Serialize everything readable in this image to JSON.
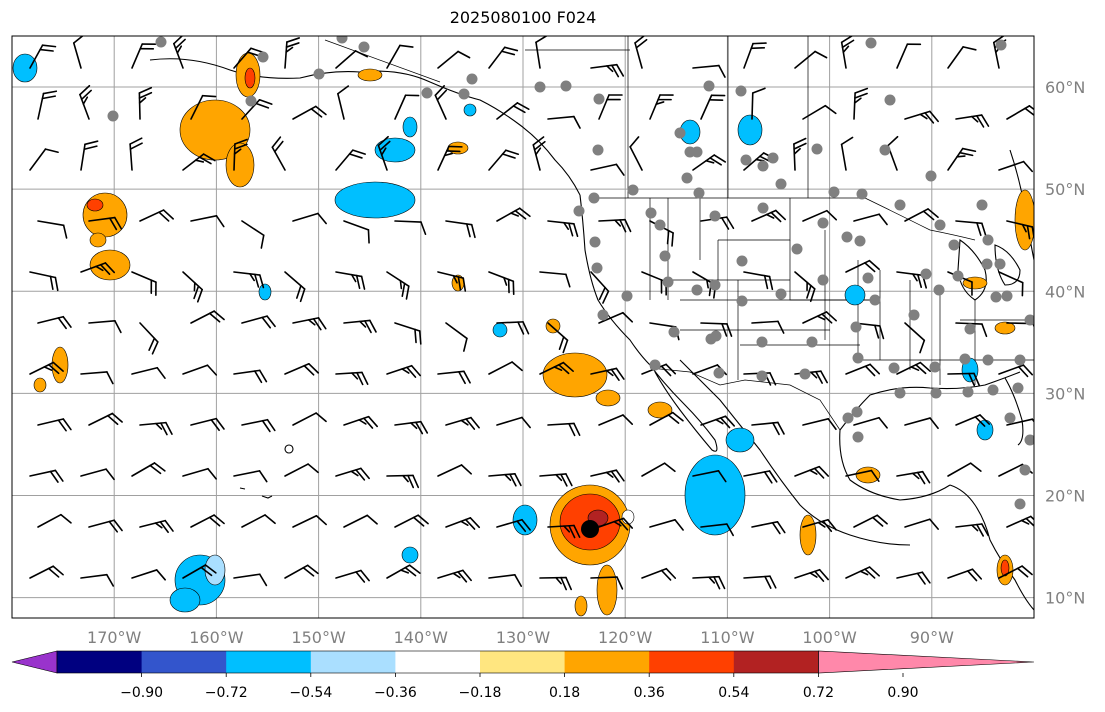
{
  "title": "2025080100 F024",
  "map": {
    "projection": "PlateCarree",
    "lon_range": [
      -180,
      -80
    ],
    "lat_range": [
      8,
      65
    ],
    "gridline_color": "#a0a0a0",
    "land_border_color": "#000000"
  },
  "axes": {
    "lon_ticks": [
      "170°W",
      "160°W",
      "150°W",
      "140°W",
      "130°W",
      "120°W",
      "110°W",
      "100°W",
      "90°W"
    ],
    "lat_ticks": [
      "60°N",
      "50°N",
      "40°N",
      "30°N",
      "20°N",
      "10°N"
    ],
    "tick_label_color": "#808080"
  },
  "colorbar": {
    "ticks": [
      "−0.90",
      "−0.72",
      "−0.54",
      "−0.36",
      "−0.18",
      "0.18",
      "0.36",
      "0.54",
      "0.72",
      "0.90"
    ],
    "colors": [
      "#9933cc",
      "#000080",
      "#3355cc",
      "#00bfff",
      "#aadfff",
      "#ffffff",
      "#ffe680",
      "#ffa500",
      "#ff4000",
      "#b22222",
      "#ff88aa"
    ]
  },
  "highlight_point": {
    "label": "tropical-center-marker",
    "color": "#000000"
  }
}
